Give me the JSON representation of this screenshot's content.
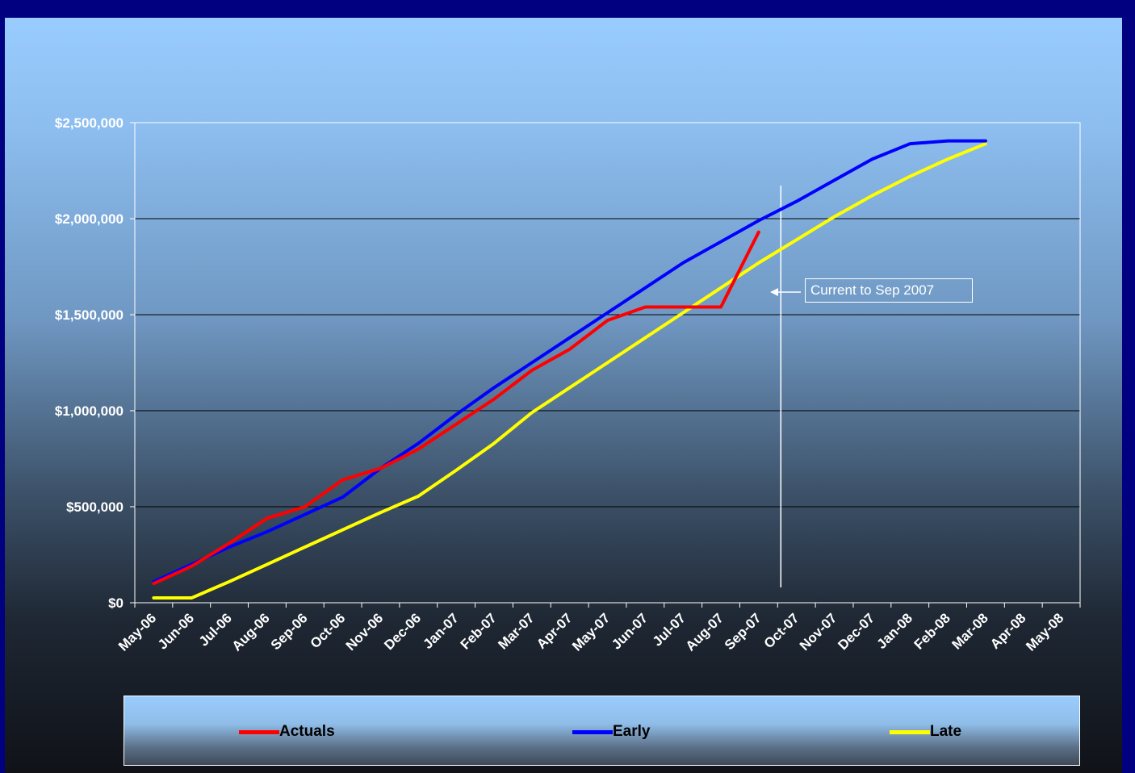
{
  "colors": {
    "frame": "#000080",
    "actuals": "#ff0000",
    "early": "#0000ff",
    "late": "#ffff00",
    "gridline": "#000000",
    "axis": "#ffffff",
    "tick_label": "#ffffff"
  },
  "annotation": {
    "text": "Current to Sep 2007"
  },
  "chart_data": {
    "type": "line",
    "title": "",
    "xlabel": "",
    "ylabel": "",
    "categories": [
      "May-06",
      "Jun-06",
      "Jul-06",
      "Aug-06",
      "Sep-06",
      "Oct-06",
      "Nov-06",
      "Dec-06",
      "Jan-07",
      "Feb-07",
      "Mar-07",
      "Apr-07",
      "May-07",
      "Jun-07",
      "Jul-07",
      "Aug-07",
      "Sep-07",
      "Oct-07",
      "Nov-07",
      "Dec-07",
      "Jan-08",
      "Feb-08",
      "Mar-08",
      "Apr-08",
      "May-08"
    ],
    "y_ticks": [
      "$0",
      "$500,000",
      "$1,000,000",
      "$1,500,000",
      "$2,000,000",
      "$2,500,000"
    ],
    "ylim": [
      0,
      2500000
    ],
    "grid": true,
    "legend_position": "bottom",
    "current_marker": "Sep-07",
    "series": [
      {
        "name": "Actuals",
        "color": "#ff0000",
        "points": [
          [
            "May-06",
            100000
          ],
          [
            "Jun-06",
            190000
          ],
          [
            "Jul-06",
            310000
          ],
          [
            "Aug-06",
            440000
          ],
          [
            "Sep-06",
            500000
          ],
          [
            "Oct-06",
            640000
          ],
          [
            "Nov-06",
            700000
          ],
          [
            "Dec-06",
            800000
          ],
          [
            "Jan-07",
            930000
          ],
          [
            "Feb-07",
            1060000
          ],
          [
            "Mar-07",
            1210000
          ],
          [
            "Apr-07",
            1320000
          ],
          [
            "May-07",
            1470000
          ],
          [
            "Jun-07",
            1540000
          ],
          [
            "Jul-07",
            1540000
          ],
          [
            "Aug-07",
            1540000
          ],
          [
            "Sep-07",
            1930000
          ]
        ]
      },
      {
        "name": "Early",
        "color": "#0000ff",
        "points": [
          [
            "May-06",
            110000
          ],
          [
            "Jun-06",
            200000
          ],
          [
            "Jul-06",
            290000
          ],
          [
            "Aug-06",
            370000
          ],
          [
            "Sep-06",
            460000
          ],
          [
            "Oct-06",
            550000
          ],
          [
            "Nov-06",
            700000
          ],
          [
            "Dec-06",
            830000
          ],
          [
            "Jan-07",
            980000
          ],
          [
            "Feb-07",
            1120000
          ],
          [
            "Mar-07",
            1250000
          ],
          [
            "Apr-07",
            1380000
          ],
          [
            "May-07",
            1510000
          ],
          [
            "Jun-07",
            1640000
          ],
          [
            "Jul-07",
            1770000
          ],
          [
            "Aug-07",
            1880000
          ],
          [
            "Sep-07",
            1990000
          ],
          [
            "Oct-07",
            2090000
          ],
          [
            "Nov-07",
            2200000
          ],
          [
            "Dec-07",
            2310000
          ],
          [
            "Jan-08",
            2390000
          ],
          [
            "Feb-08",
            2405000
          ],
          [
            "Mar-08",
            2405000
          ]
        ]
      },
      {
        "name": "Late",
        "color": "#ffff00",
        "points": [
          [
            "May-06",
            25000
          ],
          [
            "Jun-06",
            25000
          ],
          [
            "Jul-06",
            110000
          ],
          [
            "Aug-06",
            200000
          ],
          [
            "Sep-06",
            290000
          ],
          [
            "Oct-06",
            380000
          ],
          [
            "Nov-06",
            470000
          ],
          [
            "Dec-06",
            555000
          ],
          [
            "Jan-07",
            690000
          ],
          [
            "Feb-07",
            830000
          ],
          [
            "Mar-07",
            990000
          ],
          [
            "Apr-07",
            1120000
          ],
          [
            "May-07",
            1250000
          ],
          [
            "Jun-07",
            1380000
          ],
          [
            "Jul-07",
            1510000
          ],
          [
            "Aug-07",
            1640000
          ],
          [
            "Sep-07",
            1770000
          ],
          [
            "Oct-07",
            1890000
          ],
          [
            "Nov-07",
            2010000
          ],
          [
            "Dec-07",
            2120000
          ],
          [
            "Jan-08",
            2220000
          ],
          [
            "Feb-08",
            2310000
          ],
          [
            "Mar-08",
            2390000
          ]
        ]
      }
    ]
  }
}
